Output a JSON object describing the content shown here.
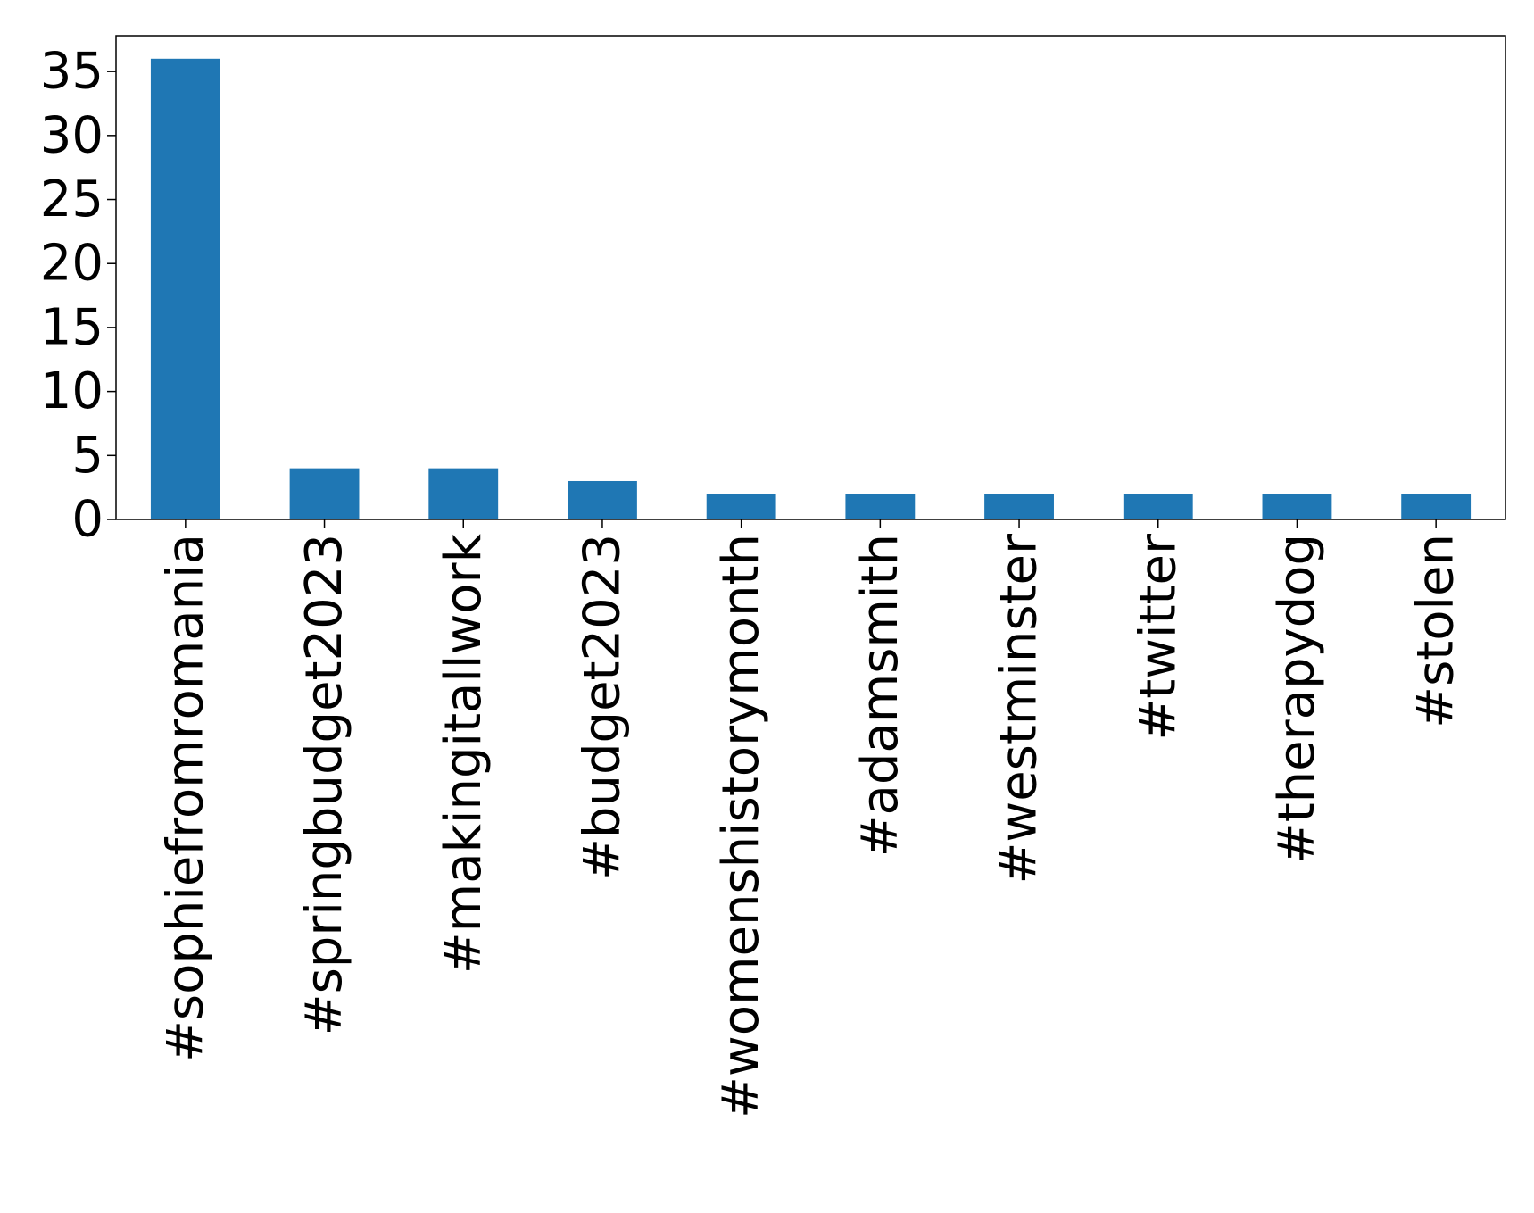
{
  "chart_data": {
    "type": "bar",
    "categories": [
      "#sophiefromromania",
      "#springbudget2023",
      "#makingitallwork",
      "#budget2023",
      "#womenshistorymonth",
      "#adamsmith",
      "#westminster",
      "#twitter",
      "#therapydog",
      "#stolen"
    ],
    "values": [
      36,
      4,
      4,
      3,
      2,
      2,
      2,
      2,
      2,
      2
    ],
    "title": "",
    "xlabel": "",
    "ylabel": "",
    "ylim": [
      0,
      37.8
    ],
    "yticks": [
      "0",
      "5",
      "10",
      "15",
      "20",
      "25",
      "30",
      "35"
    ],
    "grid": false,
    "legend": "none",
    "bar_color": "#1f77b4"
  }
}
